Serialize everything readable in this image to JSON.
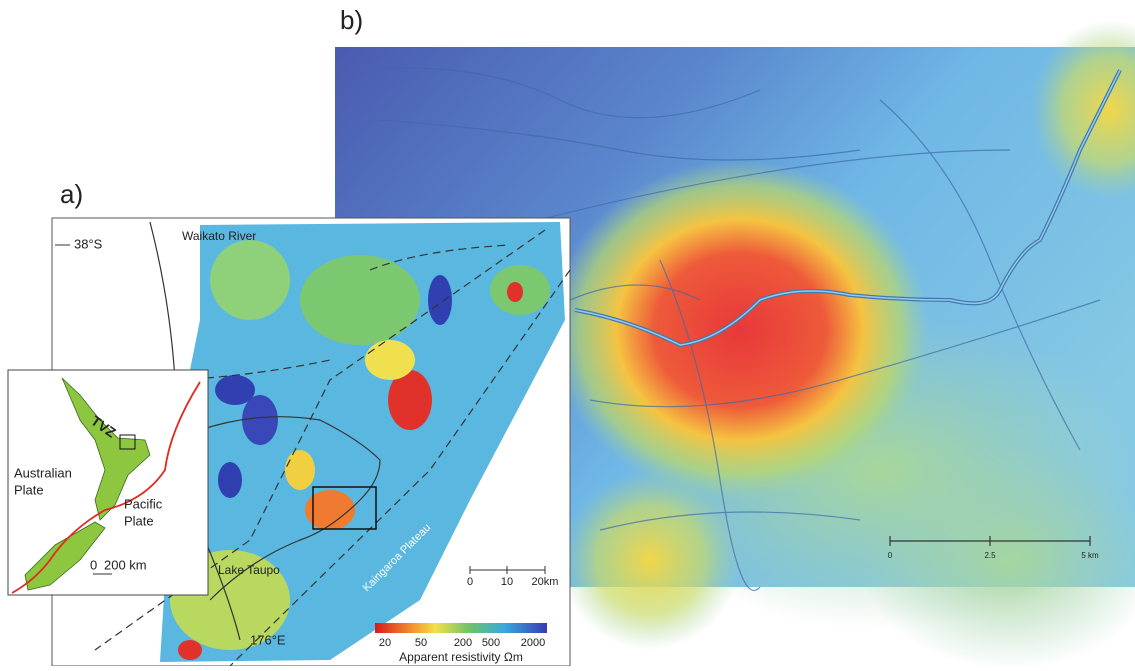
{
  "panel_b": {
    "label": "b)",
    "scale_bar": [
      "0",
      "2.5",
      "5 km"
    ]
  },
  "panel_a": {
    "label": "a)",
    "latitude": "38°S",
    "longitude": "176°E",
    "river": "Waikato River",
    "lake": "Lake Taupo",
    "plateau": "Kaingaroa Plateau",
    "scale_bar": [
      "0",
      "10",
      "20km"
    ],
    "colorbar": {
      "ticks": [
        "20",
        "50",
        "200",
        "500",
        "2000"
      ],
      "title": "Apparent resistivity Ωm"
    },
    "inset": {
      "zone": "TVZ",
      "plate_west": [
        "Australian",
        "Plate"
      ],
      "plate_east": [
        "Pacific",
        "Plate"
      ],
      "scale_bar": [
        "0",
        "200 km"
      ]
    }
  }
}
